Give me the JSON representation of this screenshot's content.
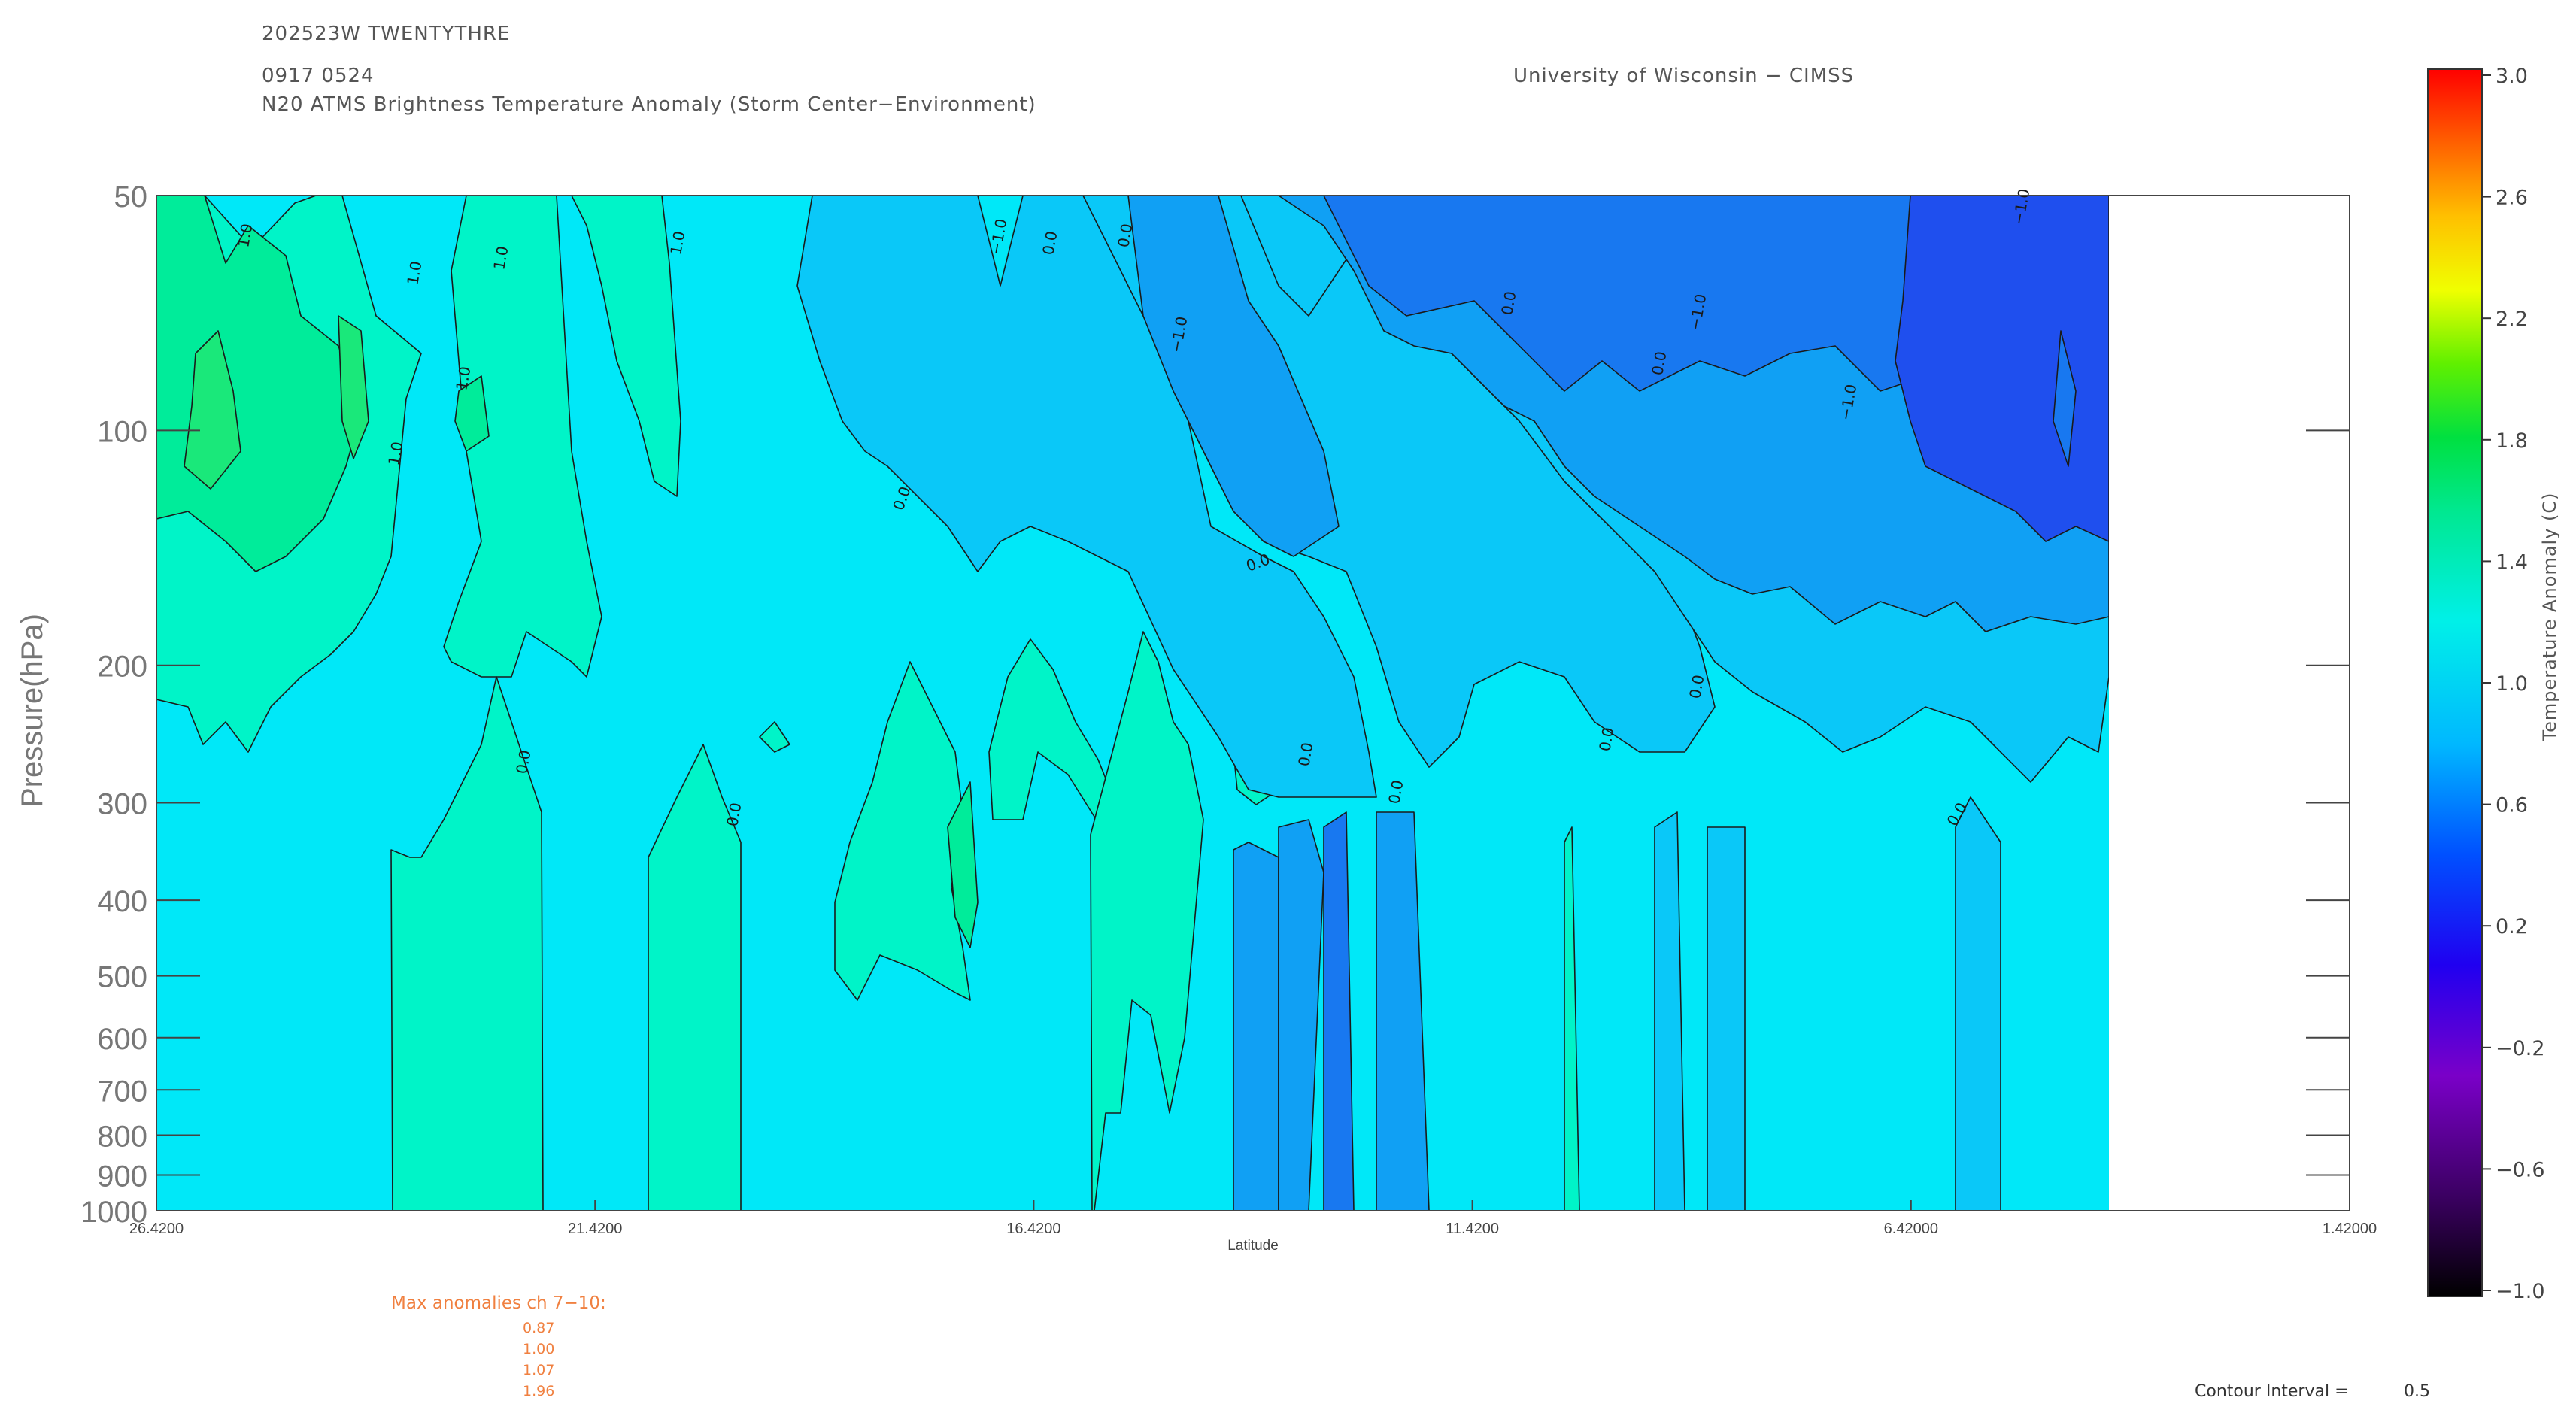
{
  "header": {
    "storm_id": "202523W  TWENTYTHRE",
    "datetime": "0917  0524",
    "product": "N20  ATMS  Brightness  Temperature  Anomaly  (Storm  Center−Environment)",
    "institution": "University  of  Wisconsin  −  CIMSS"
  },
  "chart_data": {
    "type": "heatmap",
    "xlabel": "Latitude",
    "ylabel": "Pressure(hPa)",
    "x_ticks": [
      "26.4200",
      "21.4200",
      "16.4200",
      "11.4200",
      "6.42000",
      "1.42000"
    ],
    "x_tick_values": [
      26.42,
      21.42,
      16.42,
      11.42,
      6.42,
      1.42
    ],
    "xlim": [
      26.42,
      1.42
    ],
    "y_scale": "log",
    "ylim": [
      1000,
      50
    ],
    "y_ticks": [
      "50",
      "100",
      "200",
      "300",
      "400",
      "500",
      "600",
      "700",
      "800",
      "900",
      "1000"
    ],
    "y_tick_values": [
      50,
      100,
      200,
      300,
      400,
      500,
      600,
      700,
      800,
      900,
      1000
    ],
    "data_extent_x": [
      26.42,
      4.2
    ],
    "contour_labels": [
      "1.0",
      "1.0",
      "1.0",
      "1.0",
      "1.0",
      "1.0",
      "0.0",
      "0.0",
      "0.0",
      "0.0",
      "0.0",
      "0.0",
      "0.0",
      "0.0",
      "0.0",
      "0.0",
      "0.0",
      "0.0",
      "0.0",
      "−1.0",
      "−1.0",
      "−1.0",
      "−1.0",
      "−1.0",
      "−1.0"
    ],
    "colorbar": {
      "label": "Temperature  Anomaly  (C)",
      "ticks": [
        "3.0",
        "2.6",
        "2.2",
        "1.8",
        "1.4",
        "1.0",
        "0.6",
        "0.2",
        "−0.2",
        "−0.6",
        "−1.0"
      ],
      "tick_values": [
        3.0,
        2.6,
        2.2,
        1.8,
        1.4,
        1.0,
        0.6,
        0.2,
        -0.2,
        -0.6,
        -1.0
      ],
      "range": [
        -1.0,
        3.0
      ]
    },
    "colors": {
      "band_lowest": "#1f4fee",
      "band_low": "#1878f0",
      "band_midlow": "#10a0f4",
      "band_mid": "#0ac8f8",
      "band_base": "#00e8f8",
      "band_warm": "#00f4c8",
      "band_warmer": "#00ec9a",
      "band_warmest": "#1ae87a"
    }
  },
  "annotations": {
    "max_anomalies_title": "Max  anomalies  ch  7−10:",
    "max_anomalies": [
      "0.87",
      "1.00",
      "1.07",
      "1.96"
    ],
    "contour_interval_label": "Contour  Interval  =",
    "contour_interval_value": "0.5"
  }
}
